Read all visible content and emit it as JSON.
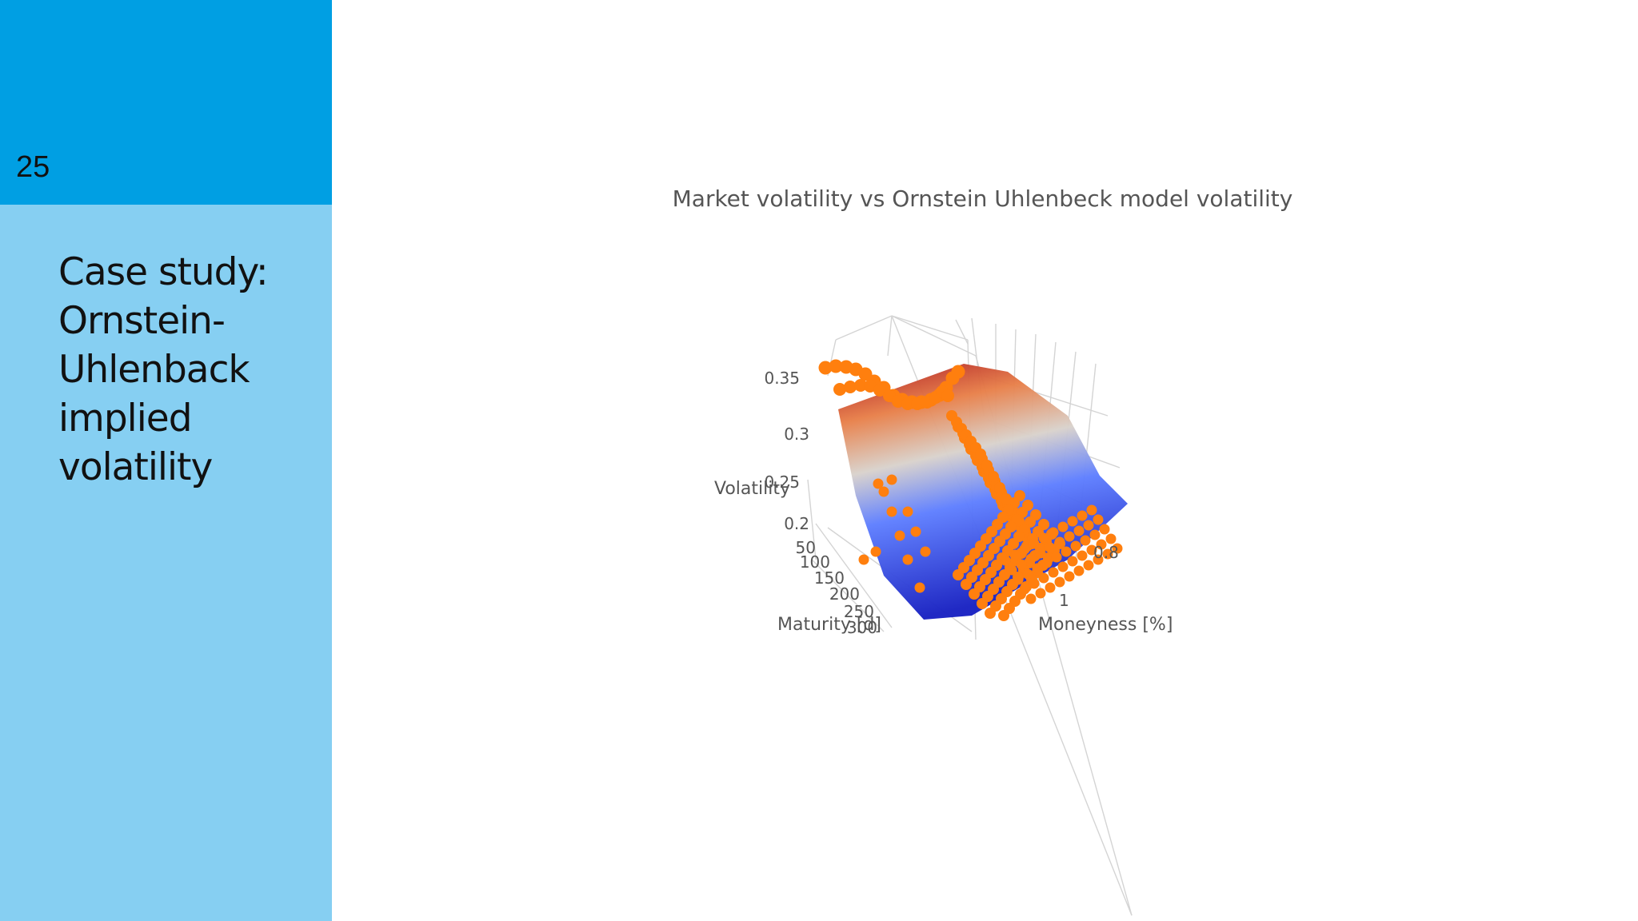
{
  "slide": {
    "number": "25",
    "title_lines": [
      "Case study:",
      "Ornstein-",
      "Uhlenback",
      "implied",
      "volatility"
    ]
  },
  "colors": {
    "sidebar_top": "#009fe3",
    "sidebar_bottom": "#86cff2",
    "market_points": "#ff7f0e",
    "surface_high": "#b2182b",
    "surface_mid": "#dddddd",
    "surface_low": "#1a2ec8"
  },
  "chart_data": {
    "type": "scatter3d+surface",
    "title": "Market volatility vs Ornstein Uhlenbeck model volatility",
    "axes": {
      "z": {
        "label": "Volatility",
        "ticks": [
          "0.35",
          "0.3",
          "0.25",
          "0.2"
        ]
      },
      "x": {
        "label": "Maturity [d]",
        "ticks": [
          "50",
          "100",
          "150",
          "200",
          "250",
          "300"
        ]
      },
      "y": {
        "label": "Moneyness [%]",
        "ticks": [
          "0.8",
          "1"
        ]
      }
    },
    "zlim": [
      0.18,
      0.37
    ],
    "series": [],
    "grid": true
  }
}
